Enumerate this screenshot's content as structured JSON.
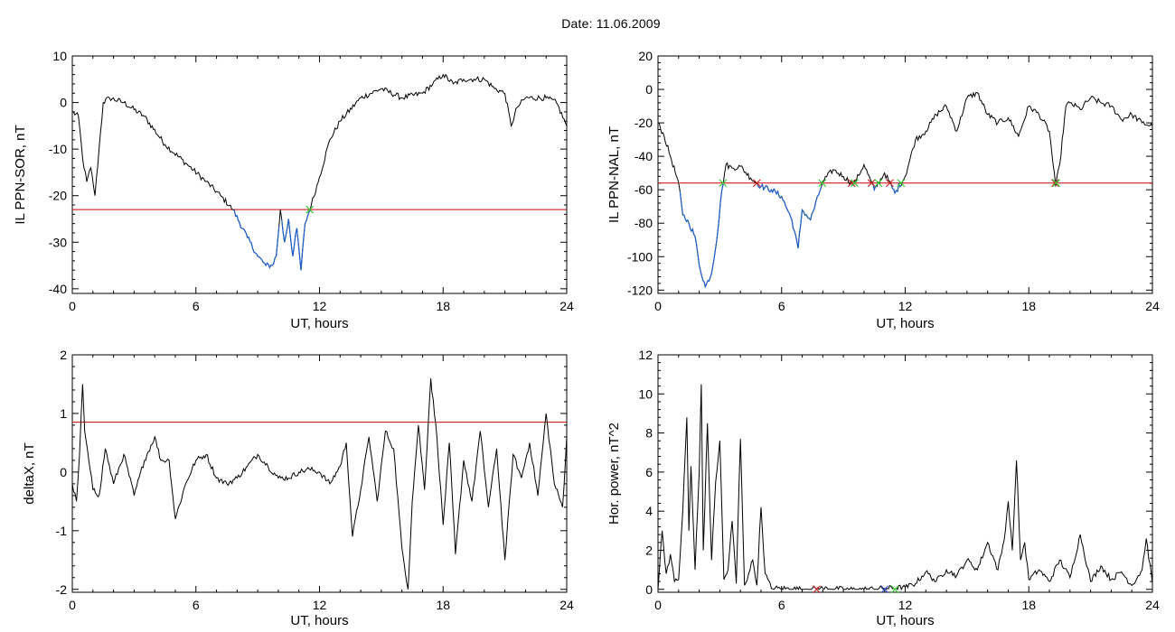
{
  "page": {
    "title": "Date:  11.06.2009"
  },
  "colors": {
    "data": "#000000",
    "threshold": "#cc0000",
    "highlight": "#1f5fc8",
    "marker_red": "#cc2222",
    "marker_green": "#33cc33",
    "marker_blue": "#3355dd"
  },
  "chart_data": [
    {
      "id": "sor",
      "type": "line",
      "xlabel": "UT, hours",
      "ylabel": "IL PPN-SOR, nT",
      "xlim": [
        0,
        24
      ],
      "ylim": [
        -41,
        10
      ],
      "xticks": [
        0,
        6,
        12,
        18,
        24
      ],
      "yticks": [
        10,
        0,
        -10,
        -20,
        -30,
        -40
      ],
      "grid": false,
      "threshold": -23,
      "series": [
        {
          "x": [
            0,
            0.3,
            0.5,
            0.7,
            0.9,
            1.1,
            1.3,
            1.5,
            1.8,
            2.5,
            3.5,
            4.5,
            5.5,
            6.5,
            7.2,
            7.8,
            8.5,
            9.0,
            9.4,
            9.7,
            9.9,
            10.1,
            10.3,
            10.5,
            10.7,
            10.9,
            11.1,
            11.3,
            11.6,
            12.0,
            12.5,
            13.0,
            14.0,
            15.0,
            16.0,
            17.0,
            17.5,
            18.0,
            18.5,
            19.0,
            19.5,
            20.0,
            20.5,
            21.0,
            21.3,
            21.6,
            22.0,
            23.0,
            23.5,
            24.0
          ],
          "y": [
            -2,
            -3,
            -12,
            -17,
            -14,
            -20,
            -10,
            0,
            1,
            0,
            -3,
            -9,
            -13,
            -17,
            -20,
            -23,
            -29,
            -33,
            -35,
            -35,
            -33,
            -23,
            -30,
            -25,
            -33,
            -27,
            -36,
            -26,
            -22,
            -16,
            -8,
            -4,
            1,
            3,
            1,
            2,
            4,
            6,
            4,
            5,
            5,
            5,
            3,
            2,
            -5,
            -1,
            1,
            1,
            0,
            -5
          ]
        }
      ]
    },
    {
      "id": "nal",
      "type": "line",
      "xlabel": "UT, hours",
      "ylabel": "IL PPN-NAL, nT",
      "xlim": [
        0,
        24
      ],
      "ylim": [
        -122,
        20
      ],
      "xticks": [
        0,
        6,
        12,
        18,
        24
      ],
      "yticks": [
        20,
        0,
        -20,
        -40,
        -60,
        -80,
        -100,
        -120
      ],
      "grid": false,
      "threshold": -56,
      "series": [
        {
          "x": [
            0,
            0.3,
            0.6,
            0.9,
            1.0,
            1.2,
            1.5,
            1.8,
            2.0,
            2.3,
            2.6,
            2.9,
            3.1,
            3.3,
            3.6,
            4.0,
            4.5,
            5.0,
            5.5,
            6.0,
            6.5,
            6.8,
            7.0,
            7.4,
            7.8,
            8.0,
            8.5,
            9.0,
            9.5,
            10.0,
            10.5,
            11.0,
            11.5,
            12.0,
            12.5,
            13.0,
            13.5,
            14.0,
            14.5,
            15.0,
            15.5,
            16.0,
            16.5,
            17.0,
            17.5,
            18.0,
            18.5,
            19.0,
            19.3,
            19.5,
            19.8,
            20.0,
            20.5,
            21.0,
            21.5,
            22.0,
            22.5,
            23.0,
            23.5,
            24.0
          ],
          "y": [
            -20,
            -28,
            -40,
            -52,
            -56,
            -75,
            -80,
            -88,
            -105,
            -118,
            -110,
            -85,
            -60,
            -45,
            -47,
            -46,
            -53,
            -58,
            -60,
            -64,
            -78,
            -95,
            -72,
            -78,
            -63,
            -55,
            -48,
            -52,
            -57,
            -45,
            -60,
            -50,
            -62,
            -52,
            -30,
            -25,
            -15,
            -10,
            -25,
            -5,
            -2,
            -15,
            -20,
            -17,
            -28,
            -10,
            -15,
            -25,
            -58,
            -45,
            -10,
            -8,
            -12,
            -5,
            -8,
            -10,
            -18,
            -15,
            -20,
            -22
          ]
        }
      ]
    },
    {
      "id": "deltax",
      "type": "line",
      "xlabel": "UT, hours",
      "ylabel": "deltaX, nT",
      "xlim": [
        0,
        24
      ],
      "ylim": [
        -2.05,
        2
      ],
      "xticks": [
        0,
        6,
        12,
        18,
        24
      ],
      "yticks": [
        2,
        1,
        0,
        -1,
        -2
      ],
      "grid": false,
      "threshold": 0.85,
      "series": [
        {
          "x": [
            0,
            0.2,
            0.35,
            0.5,
            0.6,
            0.8,
            1.0,
            1.3,
            1.6,
            2.0,
            2.5,
            3.0,
            3.5,
            4.0,
            4.3,
            4.7,
            5.0,
            5.5,
            6.0,
            6.5,
            7.0,
            7.5,
            8.0,
            8.5,
            9.0,
            9.5,
            10.0,
            10.5,
            11.0,
            11.5,
            12.0,
            12.5,
            13.0,
            13.3,
            13.6,
            14.0,
            14.4,
            14.8,
            15.2,
            15.6,
            16.0,
            16.3,
            16.5,
            16.8,
            17.1,
            17.4,
            17.7,
            18.0,
            18.3,
            18.6,
            19.0,
            19.4,
            19.8,
            20.2,
            20.6,
            21.0,
            21.4,
            21.8,
            22.2,
            22.6,
            23.0,
            23.4,
            23.8,
            24.0
          ],
          "y": [
            -0.2,
            -0.5,
            0.3,
            1.5,
            0.7,
            0.2,
            -0.3,
            -0.4,
            0.4,
            -0.2,
            0.3,
            -0.4,
            0.2,
            0.6,
            0.2,
            0.2,
            -0.8,
            -0.2,
            0.2,
            0.3,
            -0.1,
            -0.2,
            -0.1,
            0.1,
            0.3,
            0.1,
            -0.1,
            -0.1,
            0.0,
            0.05,
            0.0,
            -0.2,
            0.1,
            0.5,
            -1.1,
            -0.3,
            0.6,
            -0.5,
            0.7,
            0.4,
            -1.3,
            -2.0,
            -0.5,
            0.8,
            -0.3,
            1.6,
            0.6,
            -0.9,
            0.5,
            -1.4,
            0.2,
            -0.5,
            0.7,
            -0.6,
            0.4,
            -1.5,
            0.3,
            -0.1,
            0.5,
            -0.4,
            1.0,
            -0.2,
            -0.6,
            0.6
          ]
        }
      ]
    },
    {
      "id": "hpower",
      "type": "line",
      "xlabel": "UT, hours",
      "ylabel": "Hor. power, nT^2",
      "xlim": [
        0,
        24
      ],
      "ylim": [
        -0.15,
        12
      ],
      "xticks": [
        0,
        6,
        12,
        18,
        24
      ],
      "yticks": [
        12,
        10,
        8,
        6,
        4,
        2,
        0
      ],
      "grid": false,
      "series": [
        {
          "x": [
            0,
            0.2,
            0.4,
            0.6,
            0.8,
            1.0,
            1.2,
            1.4,
            1.5,
            1.6,
            1.8,
            2.0,
            2.1,
            2.2,
            2.4,
            2.6,
            2.8,
            3.0,
            3.2,
            3.4,
            3.6,
            3.8,
            4.0,
            4.2,
            4.4,
            4.6,
            4.8,
            5.0,
            5.2,
            5.5,
            6.0,
            7.0,
            8.0,
            9.0,
            10.0,
            11.0,
            12.0,
            12.5,
            13.0,
            13.5,
            14.0,
            14.5,
            15.0,
            15.5,
            16.0,
            16.5,
            16.8,
            17.0,
            17.2,
            17.4,
            17.6,
            17.8,
            18.0,
            18.5,
            19.0,
            19.5,
            20.0,
            20.5,
            21.0,
            21.5,
            22.0,
            22.5,
            23.0,
            23.5,
            23.7,
            24.0
          ],
          "y": [
            0,
            3.0,
            0.8,
            1.8,
            0.4,
            0.5,
            4.0,
            8.8,
            3.0,
            6.3,
            1.0,
            6.0,
            10.5,
            2.0,
            8.5,
            1.5,
            5.5,
            7.6,
            0.5,
            1.0,
            3.5,
            0.3,
            7.7,
            0.2,
            0.8,
            1.5,
            0.2,
            4.2,
            0.8,
            0.05,
            0.05,
            0.0,
            0.05,
            0.0,
            0.0,
            0.05,
            0.1,
            0.3,
            0.9,
            0.4,
            1.0,
            0.7,
            1.5,
            1.0,
            2.4,
            1.0,
            2.5,
            4.5,
            2.0,
            6.6,
            1.5,
            2.4,
            0.5,
            1.0,
            0.4,
            1.5,
            0.6,
            2.8,
            0.4,
            1.2,
            0.5,
            0.9,
            0.2,
            1.0,
            2.6,
            0.3
          ]
        }
      ]
    }
  ]
}
